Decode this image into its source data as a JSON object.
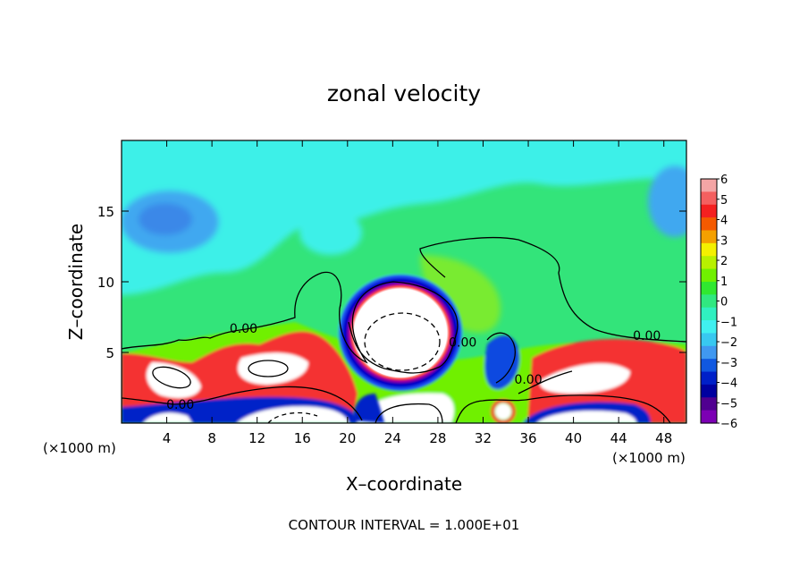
{
  "chart_data": {
    "type": "heatmap",
    "title": "zonal velocity",
    "xlabel": "X–coordinate",
    "ylabel": "Z–coordinate",
    "x_unit_left": "(×1000 m)",
    "x_unit_right": "(×1000 m)",
    "footer": "CONTOUR INTERVAL = 1.000E+01",
    "xlim": [
      0,
      50
    ],
    "ylim": [
      0,
      20
    ],
    "x_ticks": [
      4,
      8,
      12,
      16,
      20,
      24,
      28,
      32,
      36,
      40,
      44,
      48
    ],
    "x_tick_labels": [
      "4",
      "8",
      "12",
      "16",
      "20",
      "24",
      "28",
      "32",
      "36",
      "40",
      "44",
      "48"
    ],
    "y_ticks": [
      5,
      10,
      15
    ],
    "y_tick_labels": [
      "5",
      "10",
      "15"
    ],
    "contour_labels": [
      {
        "text": "0.00",
        "x": 10.8,
        "z": 6.4
      },
      {
        "text": "0.00",
        "x": 5.2,
        "z": 1.0
      },
      {
        "text": "0.00",
        "x": 30.2,
        "z": 5.4
      },
      {
        "text": "0.00",
        "x": 36.0,
        "z": 2.8
      },
      {
        "text": "0.00",
        "x": 46.5,
        "z": 5.9
      }
    ],
    "colorbar": {
      "min": -6,
      "max": 6,
      "labels": [
        "6",
        "5",
        "4",
        "3",
        "2",
        "1",
        "0",
        "−1",
        "−2",
        "−3",
        "−4",
        "−5",
        "−6"
      ],
      "colors": [
        "#f4a5a5",
        "#f46060",
        "#f42020",
        "#f45a00",
        "#f4a000",
        "#f4f000",
        "#b8f000",
        "#70f000",
        "#30e830",
        "#30e880",
        "#30f0c0",
        "#40f0f0",
        "#38c8f0",
        "#4098f0",
        "#1058e0",
        "#0020c8",
        "#0000a0",
        "#500090",
        "#7c00b4"
      ]
    }
  }
}
